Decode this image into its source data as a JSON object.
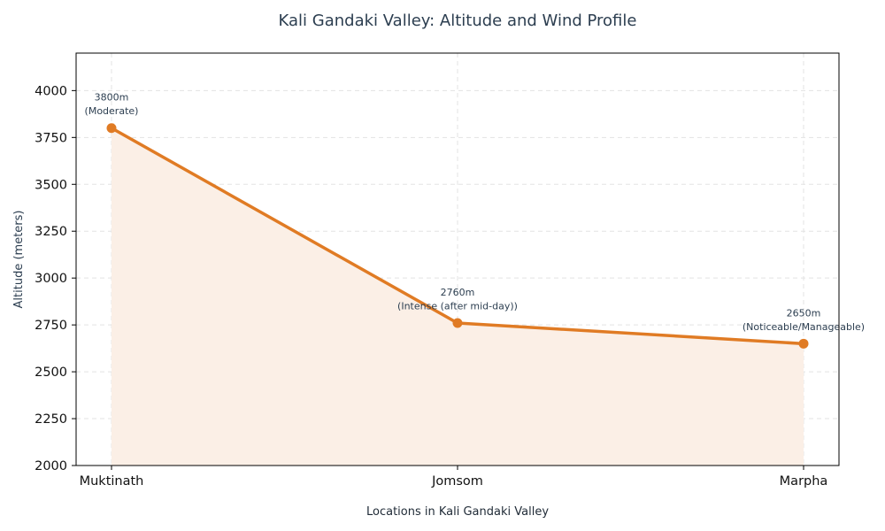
{
  "chart_data": {
    "type": "area",
    "title": "Kali Gandaki Valley: Altitude and Wind Profile",
    "xlabel": "Locations in Kali Gandaki Valley",
    "ylabel": "Altitude (meters)",
    "categories": [
      "Muktinath",
      "Jomsom",
      "Marpha"
    ],
    "series": [
      {
        "values": [
          3800,
          2760,
          2650
        ],
        "color": "#e07b24",
        "fill_color": "#fbefe6"
      }
    ],
    "data_labels": [
      [
        "3800m",
        "(Moderate)"
      ],
      [
        "2760m",
        "(Intense (after mid-day))"
      ],
      [
        "2650m",
        "(Noticeable/Manageable)"
      ]
    ],
    "ylim": [
      2000,
      4200
    ],
    "yticks": [
      2000,
      2250,
      2500,
      2750,
      3000,
      3250,
      3500,
      3750,
      4000
    ],
    "grid": true,
    "legend": "none"
  }
}
